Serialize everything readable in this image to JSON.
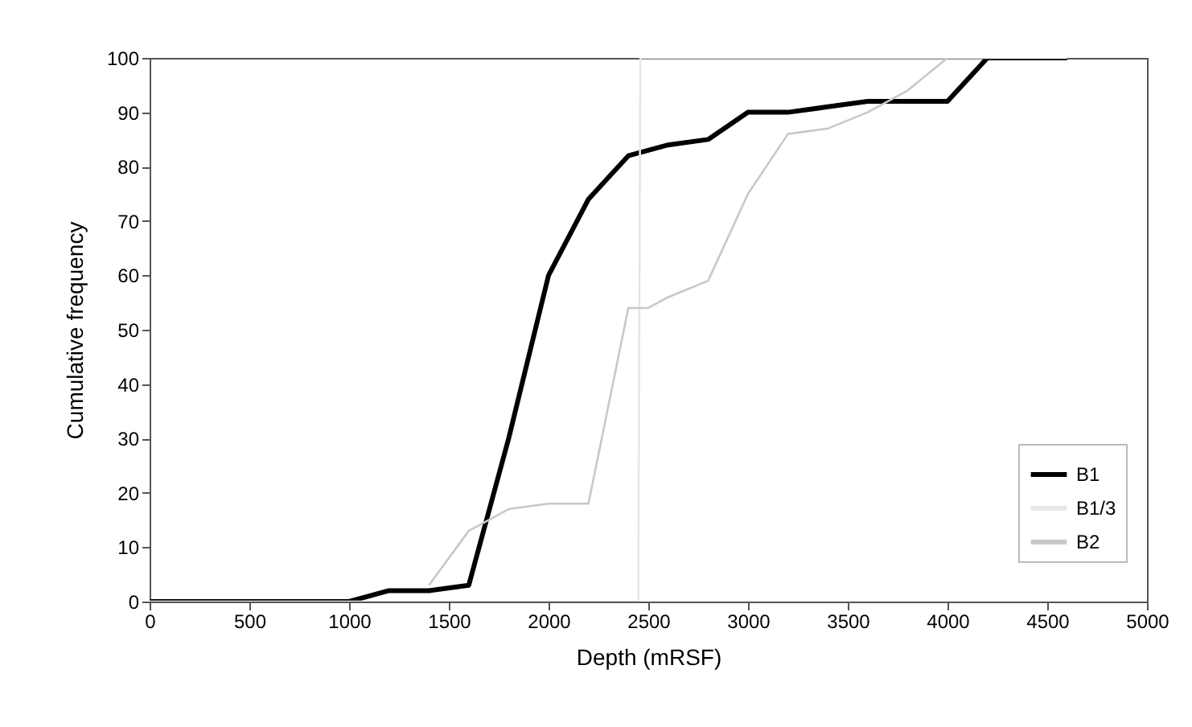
{
  "chart_data": {
    "type": "line",
    "xlabel": "Depth (mRSF)",
    "ylabel": "Cumulative frequency",
    "xlim": [
      0,
      5000
    ],
    "xticks": [
      0,
      500,
      1000,
      1500,
      2000,
      2500,
      3000,
      3500,
      4000,
      4500,
      5000
    ],
    "ylim": [
      0,
      100
    ],
    "yticks": [
      0,
      10,
      20,
      30,
      40,
      50,
      60,
      70,
      80,
      90,
      100
    ],
    "grid": false,
    "legend": "bottom right",
    "marker": "none",
    "series": [
      {
        "name": "B1",
        "color": "#000000",
        "x": [
          0,
          200,
          400,
          600,
          800,
          1000,
          1200,
          1400,
          1600,
          1800,
          2000,
          2200,
          2400,
          2600,
          2800,
          3000,
          3200,
          3400,
          3600,
          3800,
          4000,
          4200,
          4400,
          4600
        ],
        "values": [
          0,
          0,
          0,
          0,
          0,
          0,
          2,
          2,
          3,
          30,
          60,
          74,
          82,
          84,
          85,
          90,
          90,
          91,
          92,
          92,
          92,
          100,
          100,
          100
        ]
      },
      {
        "name": "B1/3",
        "color": "#e6e6e6",
        "x": [
          0,
          2450,
          2460,
          4600
        ],
        "values": [
          0,
          0,
          100,
          100
        ]
      },
      {
        "name": "B2",
        "color": "#c8c8c8",
        "x": [
          1400,
          1600,
          1800,
          2000,
          2200,
          2400,
          2500,
          2600,
          2800,
          3000,
          3200,
          3400,
          3600,
          3800,
          4000
        ],
        "values": [
          3,
          13,
          17,
          18,
          18,
          54,
          54,
          56,
          59,
          75,
          86,
          87,
          90,
          94,
          100
        ]
      }
    ]
  }
}
